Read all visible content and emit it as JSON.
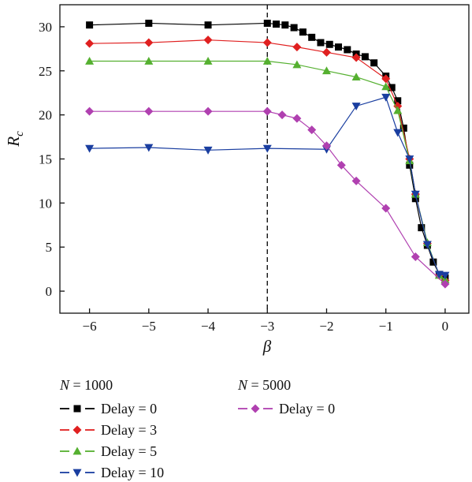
{
  "chart_data": {
    "type": "line",
    "xlabel": "β",
    "ylabel_main": "R",
    "ylabel_sub": "c",
    "xlim": [
      -6.5,
      0.4
    ],
    "ylim": [
      -2.5,
      32.5
    ],
    "xticks": [
      -6,
      -5,
      -4,
      -3,
      -2,
      -1,
      0
    ],
    "xtick_labels": [
      "−6",
      "−5",
      "−4",
      "−3",
      "−2",
      "−1",
      "0"
    ],
    "yticks": [
      0,
      5,
      10,
      15,
      20,
      25,
      30
    ],
    "ytick_labels": [
      "0",
      "5",
      "10",
      "15",
      "20",
      "25",
      "30"
    ],
    "grid": false,
    "reference_line": {
      "x": -3,
      "style": "dashed"
    },
    "legend_groups": [
      {
        "title_var": "N",
        "title_eq": " = 1000"
      },
      {
        "title_var": "N",
        "title_eq": " = 5000"
      }
    ],
    "series": [
      {
        "name": "Delay = 0",
        "group": 0,
        "color": "#000000",
        "marker": "square",
        "x": [
          -6,
          -5,
          -4,
          -3,
          -2.85,
          -2.7,
          -2.55,
          -2.4,
          -2.25,
          -2.1,
          -1.95,
          -1.8,
          -1.65,
          -1.5,
          -1.35,
          -1.2,
          -1.0,
          -0.9,
          -0.8,
          -0.7,
          -0.6,
          -0.5,
          -0.4,
          -0.3,
          -0.2,
          -0.1,
          0
        ],
        "y": [
          30.2,
          30.4,
          30.2,
          30.4,
          30.3,
          30.2,
          29.9,
          29.4,
          28.8,
          28.2,
          28.0,
          27.7,
          27.4,
          26.9,
          26.6,
          25.9,
          24.4,
          23.1,
          21.6,
          18.5,
          14.3,
          10.5,
          7.2,
          5.2,
          3.3,
          1.9,
          1.5
        ]
      },
      {
        "name": "Delay = 3",
        "group": 0,
        "color": "#e02020",
        "marker": "diamond",
        "x": [
          -6,
          -5,
          -4,
          -3,
          -2.5,
          -2,
          -1.5,
          -1.0,
          -0.8,
          -0.6,
          -0.5,
          -0.3,
          -0.1,
          0
        ],
        "y": [
          28.1,
          28.2,
          28.5,
          28.2,
          27.7,
          27.1,
          26.5,
          24.1,
          21.0,
          15.0,
          11.0,
          5.4,
          1.8,
          1.2
        ]
      },
      {
        "name": "Delay = 5",
        "group": 0,
        "color": "#55b030",
        "marker": "triangle-up",
        "x": [
          -6,
          -5,
          -4,
          -3,
          -2.5,
          -2,
          -1.5,
          -1.0,
          -0.8,
          -0.6,
          -0.5,
          -0.3,
          -0.1,
          0
        ],
        "y": [
          26.1,
          26.1,
          26.1,
          26.1,
          25.7,
          25.0,
          24.3,
          23.2,
          20.5,
          14.8,
          11.0,
          5.5,
          1.8,
          1.3
        ]
      },
      {
        "name": "Delay = 10",
        "group": 0,
        "color": "#1a3ea0",
        "marker": "triangle-down",
        "x": [
          -6,
          -5,
          -4,
          -3,
          -2,
          -1.5,
          -1.0,
          -0.8,
          -0.6,
          -0.5,
          -0.3,
          -0.1,
          0
        ],
        "y": [
          16.2,
          16.3,
          16.0,
          16.2,
          16.1,
          21.0,
          22.0,
          18.0,
          15.0,
          11.0,
          5.3,
          1.9,
          1.8
        ]
      },
      {
        "name": "Delay = 0",
        "group": 1,
        "color": "#b040b0",
        "marker": "diamond",
        "x": [
          -6,
          -5,
          -4,
          -3,
          -2.75,
          -2.5,
          -2.25,
          -2.0,
          -1.75,
          -1.5,
          -1.0,
          -0.5,
          0
        ],
        "y": [
          20.4,
          20.4,
          20.4,
          20.4,
          20.0,
          19.6,
          18.3,
          16.5,
          14.3,
          12.5,
          9.4,
          3.9,
          0.8
        ]
      }
    ]
  }
}
